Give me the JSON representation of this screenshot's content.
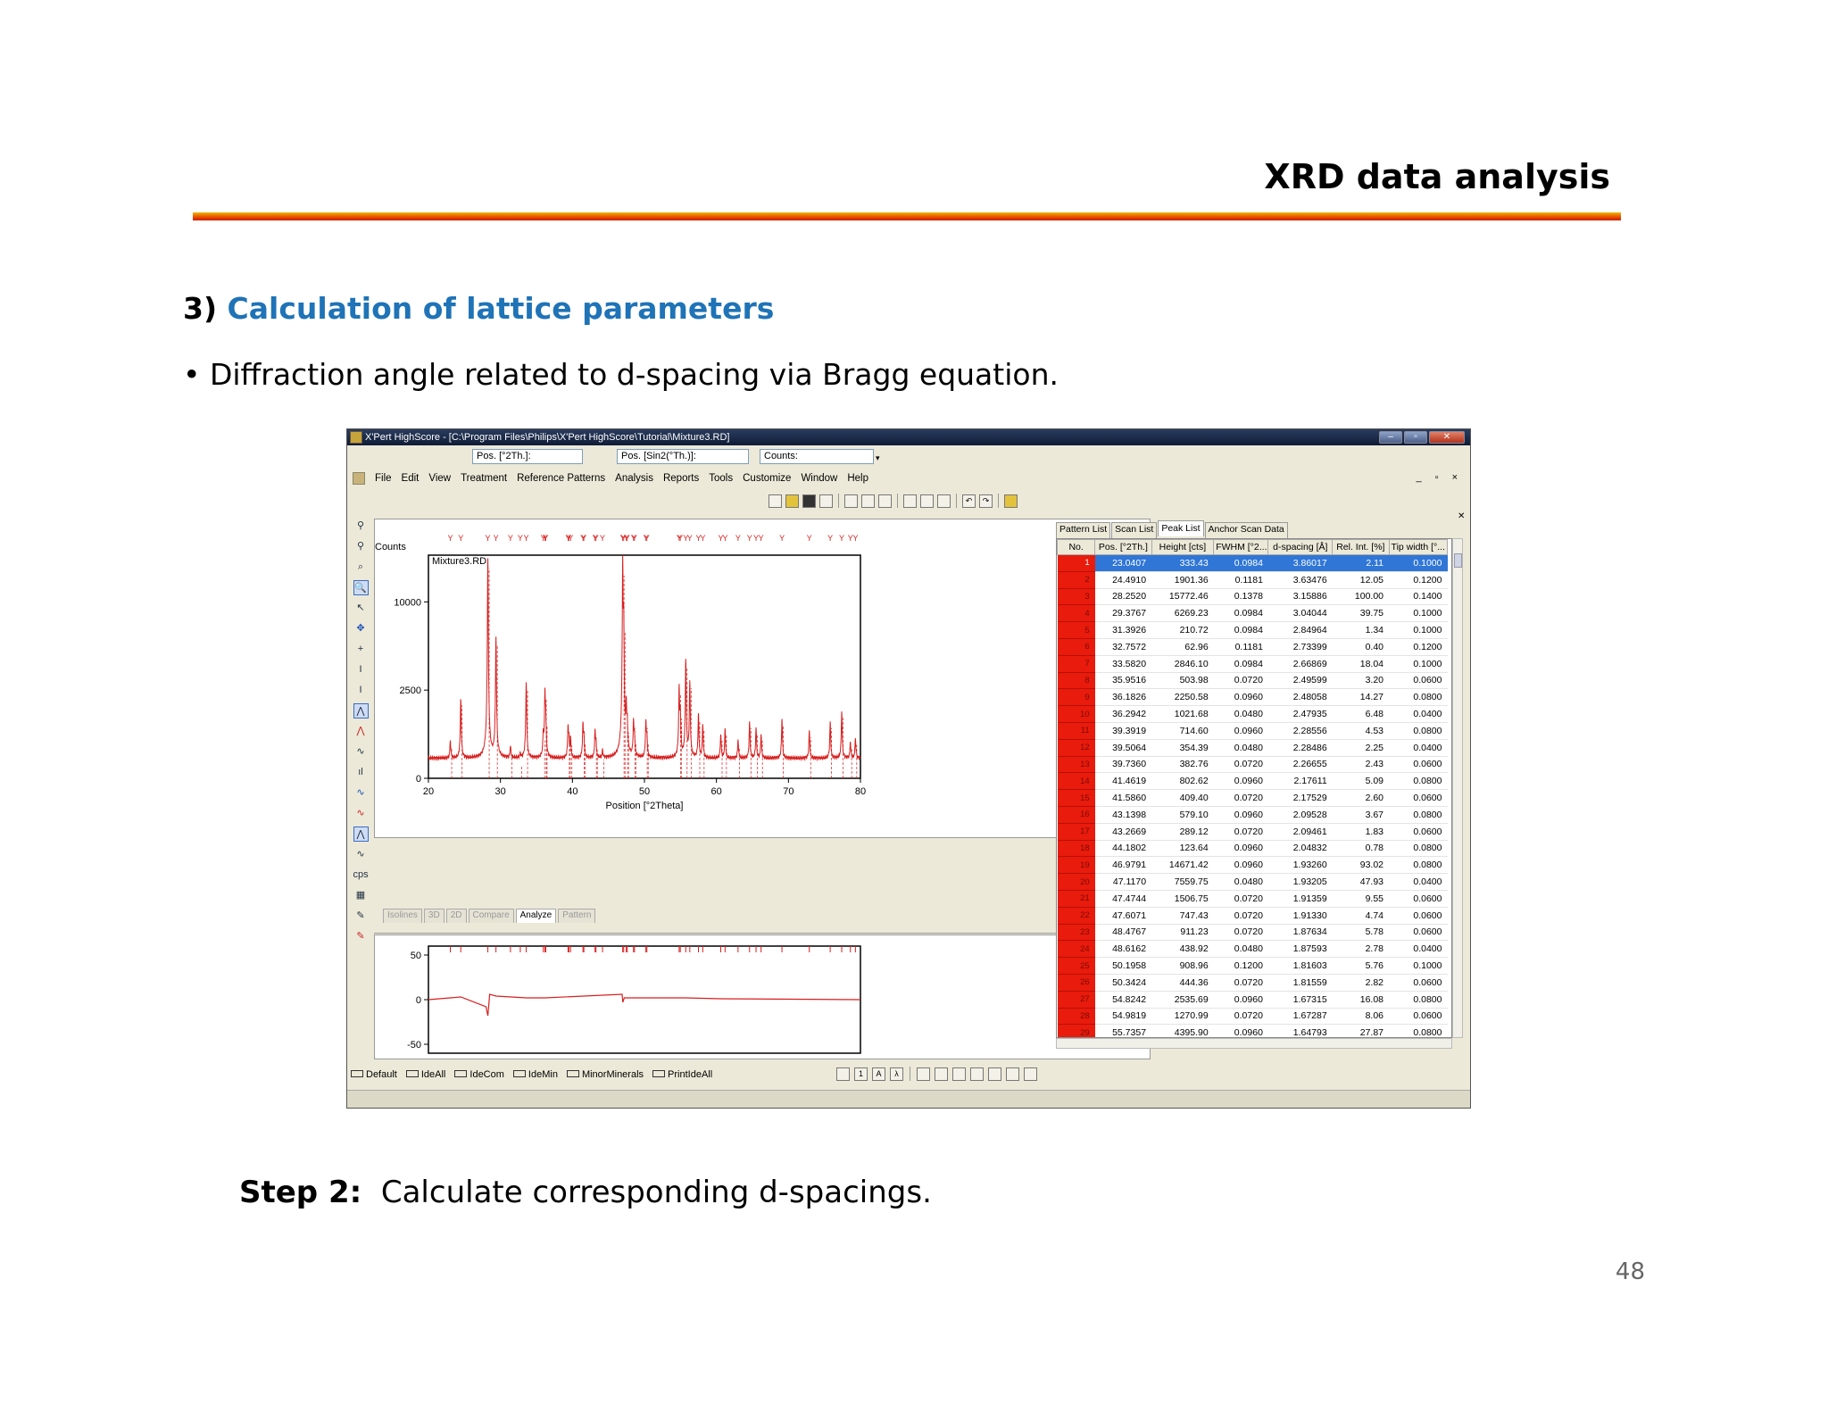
{
  "slide": {
    "title": "XRD data analysis",
    "section_number": "3)",
    "section_title": "Calculation of lattice parameters",
    "bullet": "• Diffraction angle related to d-spacing via Bragg equation.",
    "step_label": "Step 2:",
    "step_text": "Calculate corresponding d-spacings.",
    "page_number": "48"
  },
  "app": {
    "title": "X'Pert HighScore - [C:\\Program Files\\Philips\\X'Pert HighScore\\Tutorial\\Mixture3.RD]",
    "coord_fields": [
      "Pos. [°2Th.]:",
      "Pos. [Sin2(°Th.)]:",
      "Counts:"
    ],
    "menu": [
      "File",
      "Edit",
      "View",
      "Treatment",
      "Reference Patterns",
      "Analysis",
      "Reports",
      "Tools",
      "Customize",
      "Window",
      "Help"
    ],
    "mdi_buttons": "_ ▫ ×",
    "view_tabs": [
      "Isolines",
      "3D",
      "2D",
      "Compare",
      "Analyze",
      "Pattern"
    ],
    "active_view_tab": "Analyze",
    "bottom_toolbar": [
      "Default",
      "IdeAll",
      "IdeCom",
      "IdeMin",
      "MinorMinerals",
      "PrintIdeAll"
    ],
    "left_tool_icons": [
      "zoom-in-icon",
      "zoom-out-icon",
      "zoom-fit-icon",
      "magnifier-icon",
      "pointer-icon",
      "move-icon",
      "crosshair-icon",
      "y-scale-icon",
      "x-scale-icon",
      "peak-select-icon",
      "peak-mark-icon",
      "background-icon",
      "bars-icon",
      "profile-blue-icon",
      "profile-red-icon",
      "profile-select-icon",
      "profile-green-icon",
      "cps-label",
      "calculator-icon",
      "pen-green-icon",
      "pen-red-icon"
    ],
    "left_tool_glyphs": [
      "⚲",
      "⚲",
      "⌕",
      "🔍",
      "↖",
      "✥",
      "+",
      "I",
      "I",
      "⋀",
      "⋀",
      "∿",
      "ıl",
      "∿",
      "∿",
      "⋀",
      "∿",
      "cps",
      "▦",
      "✎",
      "✎"
    ],
    "accent_red": "#d81e1e",
    "selection_blue": "#2f76d6"
  },
  "peak_list": {
    "tabs": [
      "Pattern List",
      "Scan List",
      "Peak List",
      "Anchor Scan Data"
    ],
    "active_tab": "Peak List",
    "columns": [
      "No.",
      "Pos. [°2Th.]",
      "Height [cts]",
      "FWHM [°2...",
      "d-spacing [Å]",
      "Rel. Int. [%]",
      "Tip width [°..."
    ],
    "rows": [
      [
        "1",
        "23.0407",
        "333.43",
        "0.0984",
        "3.86017",
        "2.11",
        "0.1000"
      ],
      [
        "2",
        "24.4910",
        "1901.36",
        "0.1181",
        "3.63476",
        "12.05",
        "0.1200"
      ],
      [
        "3",
        "28.2520",
        "15772.46",
        "0.1378",
        "3.15886",
        "100.00",
        "0.1400"
      ],
      [
        "4",
        "29.3767",
        "6269.23",
        "0.0984",
        "3.04044",
        "39.75",
        "0.1000"
      ],
      [
        "5",
        "31.3926",
        "210.72",
        "0.0984",
        "2.84964",
        "1.34",
        "0.1000"
      ],
      [
        "6",
        "32.7572",
        "62.96",
        "0.1181",
        "2.73399",
        "0.40",
        "0.1200"
      ],
      [
        "7",
        "33.5820",
        "2846.10",
        "0.0984",
        "2.66869",
        "18.04",
        "0.1000"
      ],
      [
        "8",
        "35.9516",
        "503.98",
        "0.0720",
        "2.49599",
        "3.20",
        "0.0600"
      ],
      [
        "9",
        "36.1826",
        "2250.58",
        "0.0960",
        "2.48058",
        "14.27",
        "0.0800"
      ],
      [
        "10",
        "36.2942",
        "1021.68",
        "0.0480",
        "2.47935",
        "6.48",
        "0.0400"
      ],
      [
        "11",
        "39.3919",
        "714.60",
        "0.0960",
        "2.28556",
        "4.53",
        "0.0800"
      ],
      [
        "12",
        "39.5064",
        "354.39",
        "0.0480",
        "2.28486",
        "2.25",
        "0.0400"
      ],
      [
        "13",
        "39.7360",
        "382.76",
        "0.0720",
        "2.26655",
        "2.43",
        "0.0600"
      ],
      [
        "14",
        "41.4619",
        "802.62",
        "0.0960",
        "2.17611",
        "5.09",
        "0.0800"
      ],
      [
        "15",
        "41.5860",
        "409.40",
        "0.0720",
        "2.17529",
        "2.60",
        "0.0600"
      ],
      [
        "16",
        "43.1398",
        "579.10",
        "0.0960",
        "2.09528",
        "3.67",
        "0.0800"
      ],
      [
        "17",
        "43.2669",
        "289.12",
        "0.0720",
        "2.09461",
        "1.83",
        "0.0600"
      ],
      [
        "18",
        "44.1802",
        "123.64",
        "0.0960",
        "2.04832",
        "0.78",
        "0.0800"
      ],
      [
        "19",
        "46.9791",
        "14671.42",
        "0.0960",
        "1.93260",
        "93.02",
        "0.0800"
      ],
      [
        "20",
        "47.1170",
        "7559.75",
        "0.0480",
        "1.93205",
        "47.93",
        "0.0400"
      ],
      [
        "21",
        "47.4744",
        "1506.75",
        "0.0720",
        "1.91359",
        "9.55",
        "0.0600"
      ],
      [
        "22",
        "47.6071",
        "747.43",
        "0.0720",
        "1.91330",
        "4.74",
        "0.0600"
      ],
      [
        "23",
        "48.4767",
        "911.23",
        "0.0720",
        "1.87634",
        "5.78",
        "0.0600"
      ],
      [
        "24",
        "48.6162",
        "438.92",
        "0.0480",
        "1.87593",
        "2.78",
        "0.0400"
      ],
      [
        "25",
        "50.1958",
        "908.96",
        "0.1200",
        "1.81603",
        "5.76",
        "0.1000"
      ],
      [
        "26",
        "50.3424",
        "444.36",
        "0.0720",
        "1.81559",
        "2.82",
        "0.0600"
      ],
      [
        "27",
        "54.8242",
        "2535.69",
        "0.0960",
        "1.67315",
        "16.08",
        "0.0800"
      ],
      [
        "28",
        "54.9819",
        "1270.99",
        "0.0720",
        "1.67287",
        "8.06",
        "0.0600"
      ],
      [
        "29",
        "55.7357",
        "4395.90",
        "0.0960",
        "1.64793",
        "27.87",
        "0.0800"
      ]
    ],
    "selected_row": 1
  },
  "chart_data": [
    {
      "type": "line",
      "title": "Mixture3.RD",
      "xlabel": "Position [°2Theta]",
      "ylabel": "Counts",
      "xlim": [
        20,
        80
      ],
      "y_scale": "sqrt",
      "yticks": [
        0,
        2500,
        10000
      ],
      "xticks": [
        20,
        30,
        40,
        50,
        60,
        70,
        80
      ],
      "ylim": [
        0,
        16000
      ],
      "grid": false,
      "background_counts": 130,
      "series": [
        {
          "color": "#d81e1e",
          "peaks": [
            [
              23.04,
              333
            ],
            [
              24.49,
              1901
            ],
            [
              28.25,
              15772
            ],
            [
              29.38,
              6269
            ],
            [
              31.39,
              211
            ],
            [
              32.76,
              63
            ],
            [
              33.58,
              2846
            ],
            [
              35.95,
              504
            ],
            [
              36.18,
              2251
            ],
            [
              36.29,
              1022
            ],
            [
              39.39,
              715
            ],
            [
              39.51,
              354
            ],
            [
              39.74,
              383
            ],
            [
              41.46,
              803
            ],
            [
              41.59,
              409
            ],
            [
              43.14,
              579
            ],
            [
              43.27,
              289
            ],
            [
              44.18,
              124
            ],
            [
              46.98,
              14671
            ],
            [
              47.12,
              7560
            ],
            [
              47.47,
              1507
            ],
            [
              47.61,
              747
            ],
            [
              48.48,
              911
            ],
            [
              48.62,
              439
            ],
            [
              50.2,
              909
            ],
            [
              50.34,
              444
            ],
            [
              54.82,
              2536
            ],
            [
              54.98,
              1271
            ],
            [
              55.74,
              4396
            ],
            [
              56.3,
              2900
            ],
            [
              57.5,
              1200
            ],
            [
              58.1,
              800
            ],
            [
              60.6,
              500
            ],
            [
              61.2,
              650
            ],
            [
              63.0,
              350
            ],
            [
              64.6,
              900
            ],
            [
              65.5,
              700
            ],
            [
              66.2,
              500
            ],
            [
              69.1,
              1000
            ],
            [
              72.9,
              600
            ],
            [
              75.8,
              900
            ],
            [
              77.4,
              1300
            ],
            [
              78.6,
              300
            ],
            [
              79.3,
              400
            ]
          ]
        }
      ]
    },
    {
      "type": "line",
      "title": "",
      "xlim": [
        20,
        80
      ],
      "yticks": [
        -50,
        0,
        50
      ],
      "ylim": [
        -60,
        60
      ],
      "series": [
        {
          "color": "#d81e1e",
          "x": [
            20,
            24.5,
            28.0,
            28.25,
            28.5,
            29.4,
            33.6,
            36.2,
            46.9,
            47.0,
            47.2,
            55.7,
            60.6,
            80
          ],
          "y": [
            0,
            3,
            -8,
            -18,
            6,
            4,
            2,
            2,
            6,
            -3,
            2,
            2,
            1,
            0
          ]
        }
      ]
    }
  ]
}
